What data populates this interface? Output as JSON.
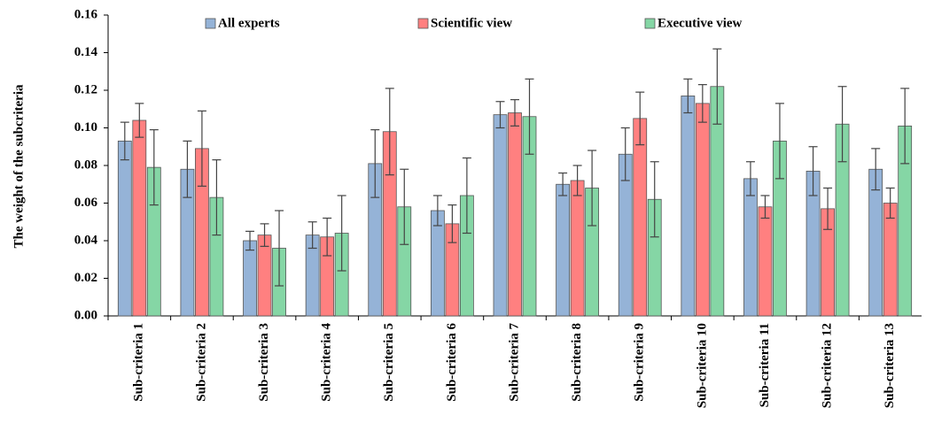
{
  "chart_data": {
    "type": "bar",
    "y_label": "The weight of the subcriteria",
    "categories": [
      "Sub-criteria 1",
      "Sub-criteria 2",
      "Sub-criteria 3",
      "Sub-criteria 4",
      "Sub-criteria 5",
      "Sub-criteria 6",
      "Sub-criteria 7",
      "Sub-criteria 8",
      "Sub-criteria 9",
      "Sub-criteria 10",
      "Sub-criteria 11",
      "Sub-criteria 12",
      "Sub-criteria 13"
    ],
    "series": [
      {
        "name": "All experts",
        "color": "#95b3d7",
        "values": [
          0.093,
          0.078,
          0.04,
          0.043,
          0.081,
          0.056,
          0.107,
          0.07,
          0.086,
          0.117,
          0.073,
          0.077,
          0.078
        ],
        "errors": [
          0.01,
          0.015,
          0.005,
          0.007,
          0.018,
          0.008,
          0.007,
          0.006,
          0.014,
          0.009,
          0.009,
          0.013,
          0.011
        ]
      },
      {
        "name": "Scientific view",
        "color": "#ff8080",
        "values": [
          0.104,
          0.089,
          0.043,
          0.042,
          0.098,
          0.049,
          0.108,
          0.072,
          0.105,
          0.113,
          0.058,
          0.057,
          0.06
        ],
        "errors": [
          0.009,
          0.02,
          0.006,
          0.01,
          0.023,
          0.01,
          0.007,
          0.008,
          0.014,
          0.01,
          0.006,
          0.011,
          0.008
        ]
      },
      {
        "name": "Executive view",
        "color": "#85d6a5",
        "values": [
          0.079,
          0.063,
          0.036,
          0.044,
          0.058,
          0.064,
          0.106,
          0.068,
          0.062,
          0.122,
          0.093,
          0.102,
          0.101
        ],
        "errors": [
          0.02,
          0.02,
          0.02,
          0.02,
          0.02,
          0.02,
          0.02,
          0.02,
          0.02,
          0.02,
          0.02,
          0.02,
          0.02
        ]
      }
    ],
    "ylim": [
      0,
      0.16
    ],
    "yticks": [
      {
        "value": 0,
        "label": "0.00"
      },
      {
        "value": 0.02,
        "label": "0.02"
      },
      {
        "value": 0.04,
        "label": "0.04"
      },
      {
        "value": 0.06,
        "label": "0.06"
      },
      {
        "value": 0.08,
        "label": "0.08"
      },
      {
        "value": 0.1,
        "label": "0.10"
      },
      {
        "value": 0.12,
        "label": "0.12"
      },
      {
        "value": 0.14,
        "label": "0.14"
      },
      {
        "value": 0.16,
        "label": "0.16"
      }
    ],
    "legend": "top",
    "grid": false
  }
}
